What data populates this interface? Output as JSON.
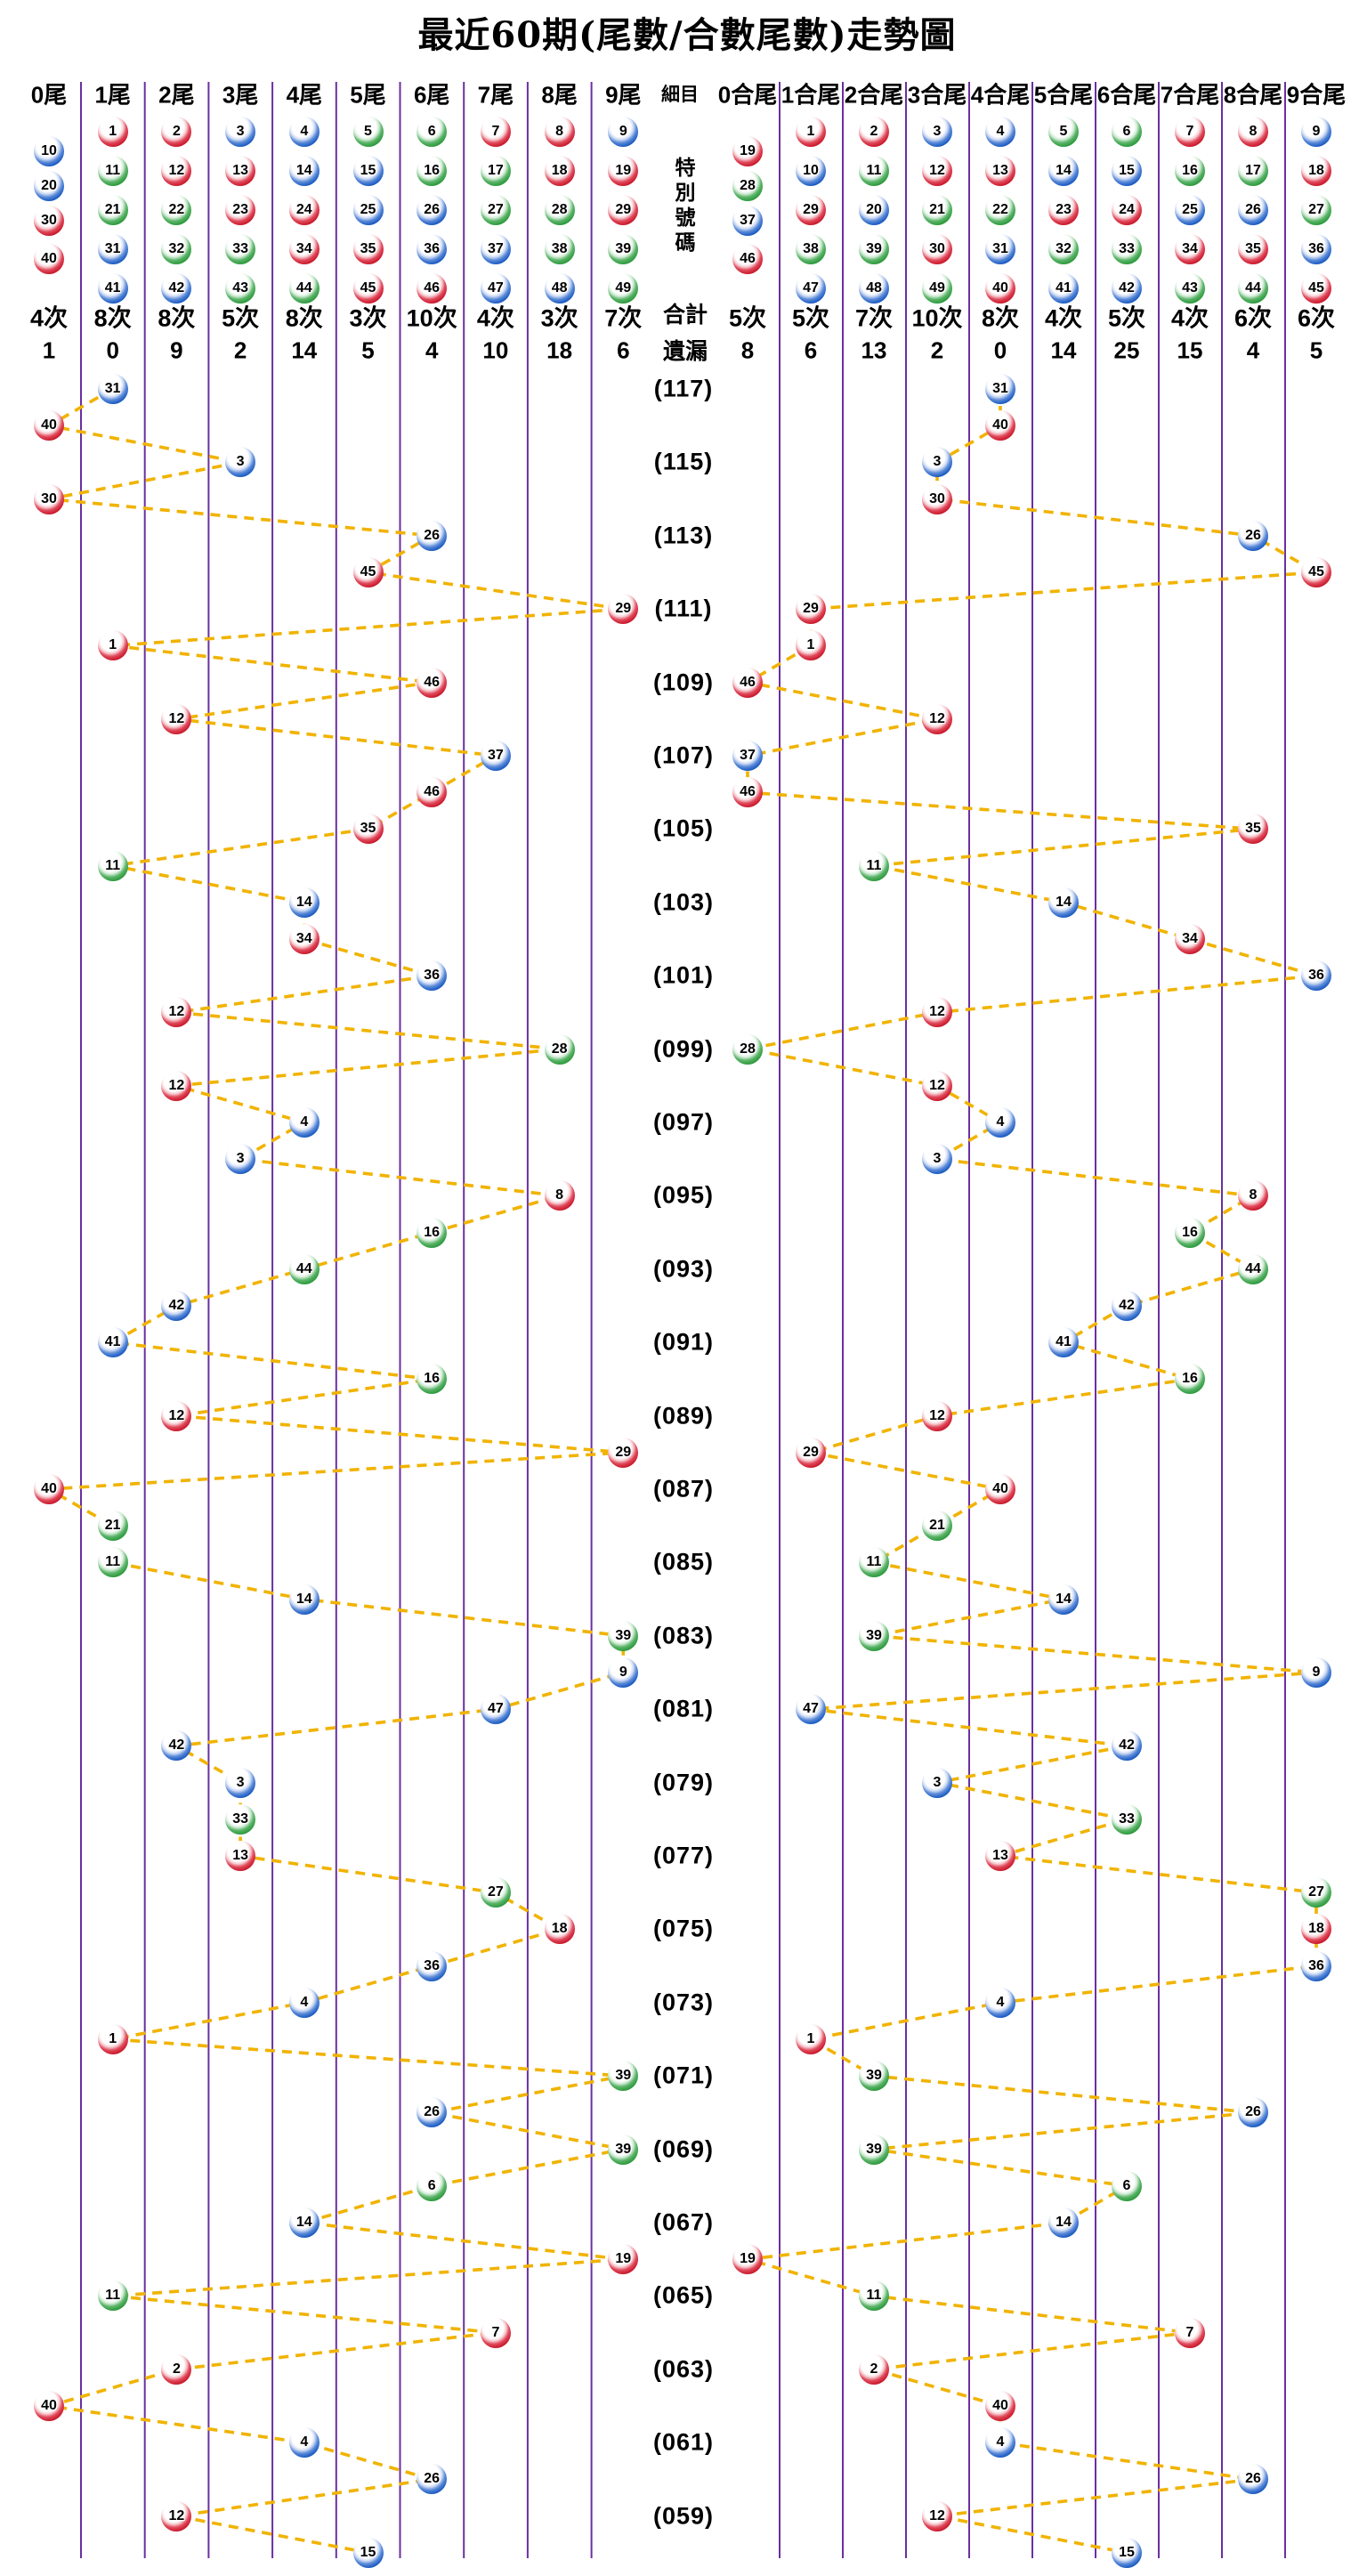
{
  "title": "最近60期(尾數/合數尾數)走勢圖",
  "middle": {
    "header": "細目",
    "vertical_label": "特別號碼",
    "total_label": "合計",
    "miss_label": "遺漏"
  },
  "left_columns": [
    {
      "label": "0尾",
      "balls": [
        10,
        20,
        30,
        40
      ],
      "count": "4次",
      "miss": "1"
    },
    {
      "label": "1尾",
      "balls": [
        1,
        11,
        21,
        31,
        41
      ],
      "count": "8次",
      "miss": "0"
    },
    {
      "label": "2尾",
      "balls": [
        2,
        12,
        22,
        32,
        42
      ],
      "count": "8次",
      "miss": "9"
    },
    {
      "label": "3尾",
      "balls": [
        3,
        13,
        23,
        33,
        43
      ],
      "count": "5次",
      "miss": "2"
    },
    {
      "label": "4尾",
      "balls": [
        4,
        14,
        24,
        34,
        44
      ],
      "count": "8次",
      "miss": "14"
    },
    {
      "label": "5尾",
      "balls": [
        5,
        15,
        25,
        35,
        45
      ],
      "count": "3次",
      "miss": "5"
    },
    {
      "label": "6尾",
      "balls": [
        6,
        16,
        26,
        36,
        46
      ],
      "count": "10次",
      "miss": "4"
    },
    {
      "label": "7尾",
      "balls": [
        7,
        17,
        27,
        37,
        47
      ],
      "count": "4次",
      "miss": "10"
    },
    {
      "label": "8尾",
      "balls": [
        8,
        18,
        28,
        38,
        48
      ],
      "count": "3次",
      "miss": "18"
    },
    {
      "label": "9尾",
      "balls": [
        9,
        19,
        29,
        39,
        49
      ],
      "count": "7次",
      "miss": "6"
    }
  ],
  "right_columns": [
    {
      "label": "0合尾",
      "balls": [
        19,
        28,
        37,
        46
      ],
      "count": "5次",
      "miss": "8"
    },
    {
      "label": "1合尾",
      "balls": [
        1,
        10,
        29,
        38,
        47
      ],
      "count": "5次",
      "miss": "6"
    },
    {
      "label": "2合尾",
      "balls": [
        2,
        11,
        20,
        39,
        48
      ],
      "count": "7次",
      "miss": "13"
    },
    {
      "label": "3合尾",
      "balls": [
        3,
        12,
        21,
        30,
        49
      ],
      "count": "10次",
      "miss": "2"
    },
    {
      "label": "4合尾",
      "balls": [
        4,
        13,
        22,
        31,
        40
      ],
      "count": "8次",
      "miss": "0"
    },
    {
      "label": "5合尾",
      "balls": [
        5,
        14,
        23,
        32,
        41
      ],
      "count": "4次",
      "miss": "14"
    },
    {
      "label": "6合尾",
      "balls": [
        6,
        15,
        24,
        33,
        42
      ],
      "count": "5次",
      "miss": "25"
    },
    {
      "label": "7合尾",
      "balls": [
        7,
        16,
        25,
        34,
        43
      ],
      "count": "4次",
      "miss": "15"
    },
    {
      "label": "8合尾",
      "balls": [
        8,
        17,
        26,
        35,
        44
      ],
      "count": "6次",
      "miss": "4"
    },
    {
      "label": "9合尾",
      "balls": [
        9,
        18,
        27,
        36,
        45
      ],
      "count": "6次",
      "miss": "5"
    }
  ],
  "ball_colors": {
    "red": [
      1,
      2,
      7,
      8,
      12,
      13,
      18,
      19,
      23,
      24,
      29,
      30,
      34,
      35,
      40,
      45,
      46
    ],
    "blue": [
      3,
      4,
      9,
      10,
      14,
      15,
      20,
      25,
      26,
      31,
      36,
      37,
      41,
      42,
      47,
      48
    ],
    "green": [
      5,
      6,
      11,
      16,
      17,
      21,
      22,
      27,
      28,
      32,
      33,
      38,
      39,
      43,
      44,
      49
    ]
  },
  "chart_data": {
    "type": "scatter",
    "title": "最近60期(尾數/合數尾數)走勢圖",
    "x_axis_left": [
      "0尾",
      "1尾",
      "2尾",
      "3尾",
      "4尾",
      "5尾",
      "6尾",
      "7尾",
      "8尾",
      "9尾"
    ],
    "x_axis_right": [
      "0合尾",
      "1合尾",
      "2合尾",
      "3合尾",
      "4合尾",
      "5合尾",
      "6合尾",
      "7合尾",
      "8合尾",
      "9合尾"
    ],
    "period_labels": [
      "(117)",
      "(115)",
      "(113)",
      "(111)",
      "(109)",
      "(107)",
      "(105)",
      "(103)",
      "(101)",
      "(099)",
      "(097)",
      "(095)",
      "(093)",
      "(091)",
      "(089)",
      "(087)",
      "(085)",
      "(083)",
      "(081)",
      "(079)",
      "(077)",
      "(075)",
      "(073)",
      "(071)",
      "(069)",
      "(067)",
      "(065)",
      "(063)",
      "(061)",
      "(059)"
    ],
    "line_style": "dashed",
    "line_color": "#F1B300",
    "grid_color": "#6B2FA0",
    "rows": [
      {
        "label": "(117)",
        "num": 31,
        "tail": 1,
        "sum_tail": 4
      },
      {
        "label": "",
        "num": 40,
        "tail": 0,
        "sum_tail": 4
      },
      {
        "label": "(115)",
        "num": 3,
        "tail": 3,
        "sum_tail": 3
      },
      {
        "label": "",
        "num": 30,
        "tail": 0,
        "sum_tail": 3
      },
      {
        "label": "(113)",
        "num": 26,
        "tail": 6,
        "sum_tail": 8
      },
      {
        "label": "",
        "num": 45,
        "tail": 5,
        "sum_tail": 9
      },
      {
        "label": "(111)",
        "num": 29,
        "tail": 9,
        "sum_tail": 1
      },
      {
        "label": "",
        "num": 1,
        "tail": 1,
        "sum_tail": 1
      },
      {
        "label": "(109)",
        "num": 46,
        "tail": 6,
        "sum_tail": 0
      },
      {
        "label": "",
        "num": 12,
        "tail": 2,
        "sum_tail": 3
      },
      {
        "label": "(107)",
        "num": 37,
        "tail": 7,
        "sum_tail": 0
      },
      {
        "label": "",
        "num": 46,
        "tail": 6,
        "sum_tail": 0
      },
      {
        "label": "(105)",
        "num": 35,
        "tail": 5,
        "sum_tail": 8
      },
      {
        "label": "",
        "num": 11,
        "tail": 1,
        "sum_tail": 2
      },
      {
        "label": "(103)",
        "num": 14,
        "tail": 4,
        "sum_tail": 5
      },
      {
        "label": "",
        "num": 34,
        "tail": 4,
        "sum_tail": 7
      },
      {
        "label": "(101)",
        "num": 36,
        "tail": 6,
        "sum_tail": 9
      },
      {
        "label": "",
        "num": 12,
        "tail": 2,
        "sum_tail": 3
      },
      {
        "label": "(099)",
        "num": 28,
        "tail": 8,
        "sum_tail": 0
      },
      {
        "label": "",
        "num": 12,
        "tail": 2,
        "sum_tail": 3
      },
      {
        "label": "(097)",
        "num": 4,
        "tail": 4,
        "sum_tail": 4
      },
      {
        "label": "",
        "num": 3,
        "tail": 3,
        "sum_tail": 3
      },
      {
        "label": "(095)",
        "num": 8,
        "tail": 8,
        "sum_tail": 8
      },
      {
        "label": "",
        "num": 16,
        "tail": 6,
        "sum_tail": 7
      },
      {
        "label": "(093)",
        "num": 44,
        "tail": 4,
        "sum_tail": 8
      },
      {
        "label": "",
        "num": 42,
        "tail": 2,
        "sum_tail": 6
      },
      {
        "label": "(091)",
        "num": 41,
        "tail": 1,
        "sum_tail": 5
      },
      {
        "label": "",
        "num": 16,
        "tail": 6,
        "sum_tail": 7
      },
      {
        "label": "(089)",
        "num": 12,
        "tail": 2,
        "sum_tail": 3
      },
      {
        "label": "",
        "num": 29,
        "tail": 9,
        "sum_tail": 1
      },
      {
        "label": "(087)",
        "num": 40,
        "tail": 0,
        "sum_tail": 4
      },
      {
        "label": "",
        "num": 21,
        "tail": 1,
        "sum_tail": 3
      },
      {
        "label": "(085)",
        "num": 11,
        "tail": 1,
        "sum_tail": 2
      },
      {
        "label": "",
        "num": 14,
        "tail": 4,
        "sum_tail": 5
      },
      {
        "label": "(083)",
        "num": 39,
        "tail": 9,
        "sum_tail": 2
      },
      {
        "label": "",
        "num": 9,
        "tail": 9,
        "sum_tail": 9
      },
      {
        "label": "(081)",
        "num": 47,
        "tail": 7,
        "sum_tail": 1
      },
      {
        "label": "",
        "num": 42,
        "tail": 2,
        "sum_tail": 6
      },
      {
        "label": "(079)",
        "num": 3,
        "tail": 3,
        "sum_tail": 3
      },
      {
        "label": "",
        "num": 33,
        "tail": 3,
        "sum_tail": 6
      },
      {
        "label": "(077)",
        "num": 13,
        "tail": 3,
        "sum_tail": 4
      },
      {
        "label": "",
        "num": 27,
        "tail": 7,
        "sum_tail": 9
      },
      {
        "label": "(075)",
        "num": 18,
        "tail": 8,
        "sum_tail": 9
      },
      {
        "label": "",
        "num": 36,
        "tail": 6,
        "sum_tail": 9
      },
      {
        "label": "(073)",
        "num": 4,
        "tail": 4,
        "sum_tail": 4
      },
      {
        "label": "",
        "num": 1,
        "tail": 1,
        "sum_tail": 1
      },
      {
        "label": "(071)",
        "num": 39,
        "tail": 9,
        "sum_tail": 2
      },
      {
        "label": "",
        "num": 26,
        "tail": 6,
        "sum_tail": 8
      },
      {
        "label": "(069)",
        "num": 39,
        "tail": 9,
        "sum_tail": 2
      },
      {
        "label": "",
        "num": 6,
        "tail": 6,
        "sum_tail": 6
      },
      {
        "label": "(067)",
        "num": 14,
        "tail": 4,
        "sum_tail": 5
      },
      {
        "label": "",
        "num": 19,
        "tail": 9,
        "sum_tail": 0
      },
      {
        "label": "(065)",
        "num": 11,
        "tail": 1,
        "sum_tail": 2
      },
      {
        "label": "",
        "num": 7,
        "tail": 7,
        "sum_tail": 7
      },
      {
        "label": "(063)",
        "num": 2,
        "tail": 2,
        "sum_tail": 2
      },
      {
        "label": "",
        "num": 40,
        "tail": 0,
        "sum_tail": 4
      },
      {
        "label": "(061)",
        "num": 4,
        "tail": 4,
        "sum_tail": 4
      },
      {
        "label": "",
        "num": 26,
        "tail": 6,
        "sum_tail": 8
      },
      {
        "label": "(059)",
        "num": 12,
        "tail": 2,
        "sum_tail": 3
      },
      {
        "label": "",
        "num": 15,
        "tail": 5,
        "sum_tail": 6
      }
    ]
  },
  "styles": {
    "dash_color": "#F1B300",
    "grid_color": "#6B2FA0",
    "ball_red": "#CC1B2E",
    "ball_blue": "#1D5DC4",
    "ball_green": "#2F9C3F"
  }
}
